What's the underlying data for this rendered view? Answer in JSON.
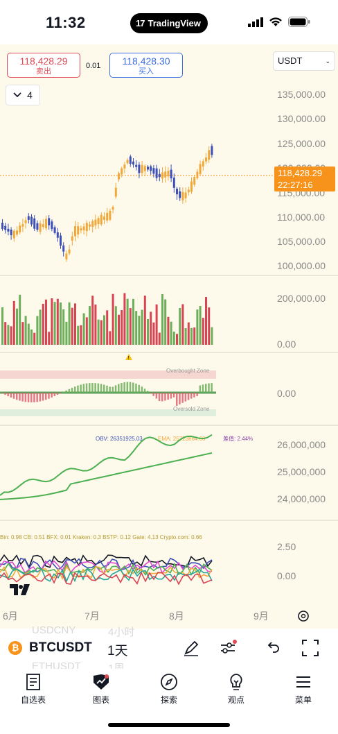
{
  "status": {
    "time": "11:32",
    "app_badge": "TradingView"
  },
  "order": {
    "sell_price": "118,428.29",
    "sell_label": "卖出",
    "spread": "0.01",
    "buy_price": "118,428.30",
    "buy_label": "买入",
    "currency": "USDT"
  },
  "indicator_toggle": {
    "count": "4"
  },
  "price_axis": [
    "135,000.00",
    "130,000.00",
    "125,000.00",
    "120,000.00",
    "115,000.00",
    "110,000.00",
    "105,000.00",
    "100,000.00"
  ],
  "last_price": {
    "price": "118,428.29",
    "countdown": "22:27:16"
  },
  "volume_axis": [
    "200,000.00",
    "0.00"
  ],
  "oscillator": {
    "zero": "0.00",
    "overbought": "Overbought Zone",
    "oversold": "Oversold Zone"
  },
  "obv": {
    "legend_obv": "OBV: 26351925.03",
    "legend_ema": "EMA: 25723864.66",
    "legend_ratio": "差值: 2.44%",
    "axis": [
      "26,000,000",
      "25,000,000",
      "24,000,000"
    ]
  },
  "exchanges": {
    "legend": "Bin: 0.98  CB: 0.51  BFX: 0.01  Kraken: 0.3  BSTP: 0.12  Gate: 4.13  Crypto.com: 0.66",
    "axis": [
      "2.50",
      "0.00"
    ]
  },
  "time_axis": [
    "6月",
    "7月",
    "8月",
    "9月"
  ],
  "symbol": {
    "name": "BTCUSDT",
    "timeframe": "1天",
    "ghost_top": "USDCNY",
    "ghost_top_tf": "4小时",
    "ghost_bottom": "ETHUSDT",
    "ghost_bottom_tf": "1周"
  },
  "nav": [
    {
      "label": "自选表",
      "icon": "watchlist-icon"
    },
    {
      "label": "图表",
      "icon": "chart-icon"
    },
    {
      "label": "探索",
      "icon": "compass-icon"
    },
    {
      "label": "观点",
      "icon": "ideas-icon"
    },
    {
      "label": "菜单",
      "icon": "menu-icon"
    }
  ],
  "colors": {
    "up": "#f2a93b",
    "down": "#3d4fb8",
    "vol_up": "#6cae5a",
    "vol_down": "#d94452",
    "last_price": "#f7931a",
    "sell": "#e04a55",
    "buy": "#3d6ee4"
  }
}
